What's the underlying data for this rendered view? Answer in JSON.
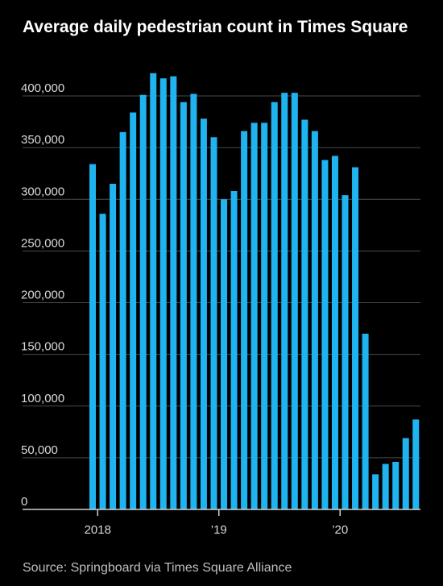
{
  "chart_data": {
    "type": "bar",
    "title": "Average daily pedestrian count in Times Square",
    "source": "Source: Springboard via Times Square Alliance",
    "xlabel": "",
    "ylabel": "",
    "ylim": [
      0,
      420000
    ],
    "yticks": [
      {
        "value": 0,
        "label": "0"
      },
      {
        "value": 50000,
        "label": "50,000"
      },
      {
        "value": 100000,
        "label": "100,000"
      },
      {
        "value": 150000,
        "label": "150,000"
      },
      {
        "value": 200000,
        "label": "200,000"
      },
      {
        "value": 250000,
        "label": "250,000"
      },
      {
        "value": 300000,
        "label": "300,000"
      },
      {
        "value": 350000,
        "label": "350,000"
      },
      {
        "value": 400000,
        "label": "400,000"
      }
    ],
    "xticks": [
      {
        "category": "2018-01",
        "label": "2018"
      },
      {
        "category": "2019-01",
        "label": "’19"
      },
      {
        "category": "2020-01",
        "label": "’20"
      }
    ],
    "grid": true,
    "bar_color": "#1fb4f0",
    "categories": [
      "2017-12",
      "2018-01",
      "2018-02",
      "2018-03",
      "2018-04",
      "2018-05",
      "2018-06",
      "2018-07",
      "2018-08",
      "2018-09",
      "2018-10",
      "2018-11",
      "2018-12",
      "2019-01",
      "2019-02",
      "2019-03",
      "2019-04",
      "2019-05",
      "2019-06",
      "2019-07",
      "2019-08",
      "2019-09",
      "2019-10",
      "2019-11",
      "2019-12",
      "2020-01",
      "2020-02",
      "2020-03",
      "2020-04",
      "2020-05",
      "2020-06",
      "2020-07",
      "2020-08"
    ],
    "values": [
      334000,
      286000,
      315000,
      365000,
      384000,
      401000,
      422000,
      417000,
      419000,
      394000,
      402000,
      378000,
      360000,
      300000,
      308000,
      366000,
      374000,
      374000,
      394000,
      403000,
      403000,
      377000,
      366000,
      338000,
      342000,
      304000,
      331000,
      170000,
      34000,
      44000,
      46000,
      69000,
      87000
    ]
  }
}
